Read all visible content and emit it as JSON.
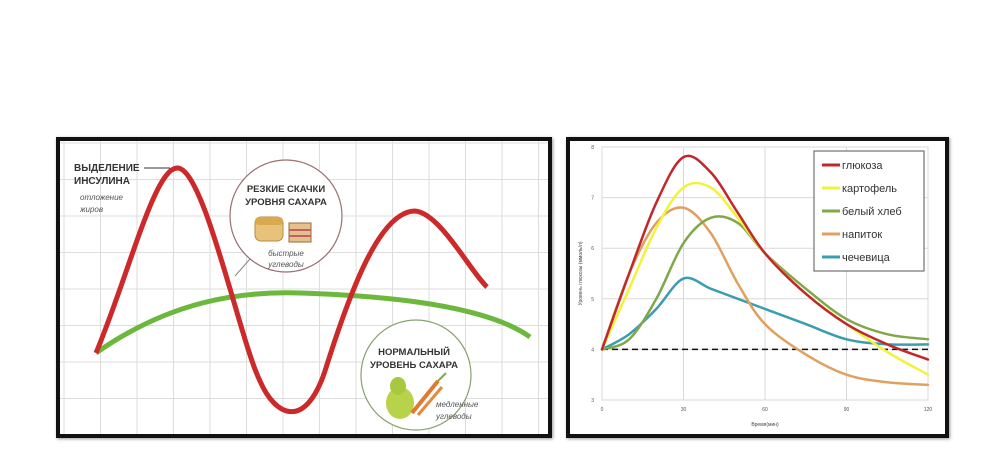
{
  "left_figure": {
    "insulin_label_line1": "ВЫДЕЛЕНИЕ",
    "insulin_label_line2": "ИНСУЛИНА",
    "fat_label_line1": "отложение",
    "fat_label_line2": "жиров",
    "spikes_title_line1": "РЕЗКИЕ СКАЧКИ",
    "spikes_title_line2": "УРОВНЯ САХАРА",
    "fast_carbs_line1": "быстрые",
    "fast_carbs_line2": "углеводы",
    "normal_title_line1": "НОРМАЛЬНЫЙ",
    "normal_title_line2": "УРОВЕНЬ САХАРА",
    "slow_carbs_line1": "медленные",
    "slow_carbs_line2": "углеводы",
    "colors": {
      "spike_curve": "#cc2a2a",
      "normal_curve": "#6cb83c"
    }
  },
  "chart_data": [
    {
      "type": "line",
      "title": "",
      "xlabel": "Время(мин)",
      "ylabel": "Уровень глюкозы (ммоль/л)",
      "xlim": [
        0,
        120
      ],
      "ylim": [
        3,
        8
      ],
      "xticks": [
        "0",
        "30",
        "60",
        "90",
        "120"
      ],
      "yticks": [
        "3",
        "4",
        "5",
        "6",
        "7",
        "8"
      ],
      "grid": true,
      "legend": "top-right",
      "reference_line": {
        "y": 4,
        "style": "dashed",
        "color": "#111111"
      },
      "x": [
        0,
        10,
        20,
        30,
        40,
        50,
        60,
        75,
        90,
        105,
        120
      ],
      "series": [
        {
          "name": "глюкоза",
          "color": "#c0282c",
          "values": [
            4.0,
            5.5,
            6.9,
            7.8,
            7.5,
            6.7,
            5.9,
            5.1,
            4.5,
            4.1,
            3.8
          ]
        },
        {
          "name": "картофель",
          "color": "#f2f23a",
          "values": [
            4.0,
            5.2,
            6.4,
            7.2,
            7.2,
            6.6,
            5.9,
            5.1,
            4.5,
            3.95,
            3.5
          ]
        },
        {
          "name": "белый хлеб",
          "color": "#7fa84a",
          "values": [
            4.0,
            4.2,
            5.0,
            6.1,
            6.6,
            6.5,
            5.9,
            5.2,
            4.6,
            4.3,
            4.2
          ]
        },
        {
          "name": "напиток",
          "color": "#e0a060",
          "values": [
            4.0,
            5.5,
            6.5,
            6.8,
            6.3,
            5.3,
            4.5,
            3.9,
            3.5,
            3.35,
            3.3
          ]
        },
        {
          "name": "чечевица",
          "color": "#3c9cb0",
          "values": [
            4.0,
            4.3,
            4.8,
            5.4,
            5.2,
            5.0,
            4.8,
            4.5,
            4.2,
            4.1,
            4.1
          ]
        }
      ]
    }
  ]
}
